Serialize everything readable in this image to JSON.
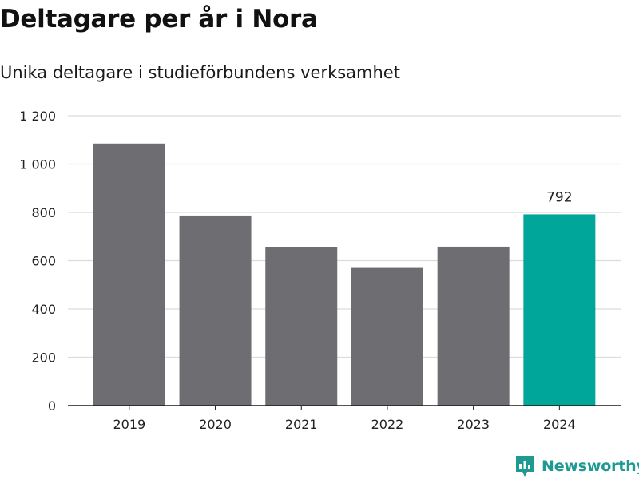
{
  "header": {
    "title": "Deltagare per år i Nora",
    "subtitle": "Unika deltagare i studieförbundens verksamhet"
  },
  "brand": {
    "name": "Newsworthy",
    "color": "#1e9a92"
  },
  "colors": {
    "bar": "#6e6d72",
    "highlight": "#00a69a",
    "grid": "#dcdcdc",
    "axis": "#1a1a1a"
  },
  "chart_data": {
    "type": "bar",
    "title": "Deltagare per år i Nora",
    "subtitle": "Unika deltagare i studieförbundens verksamhet",
    "categories": [
      "2019",
      "2020",
      "2021",
      "2022",
      "2023",
      "2024"
    ],
    "values": [
      1085,
      787,
      655,
      570,
      658,
      792
    ],
    "highlight_index": 5,
    "data_labels": [
      {
        "index": 5,
        "text": "792"
      }
    ],
    "xlabel": "",
    "ylabel": "",
    "ylim": [
      0,
      1200
    ],
    "yticks": [
      0,
      200,
      400,
      600,
      800,
      1000,
      1200
    ],
    "ytick_labels": [
      "0",
      "200",
      "400",
      "600",
      "800",
      "1 000",
      "1 200"
    ],
    "grid": true,
    "legend": "none"
  }
}
